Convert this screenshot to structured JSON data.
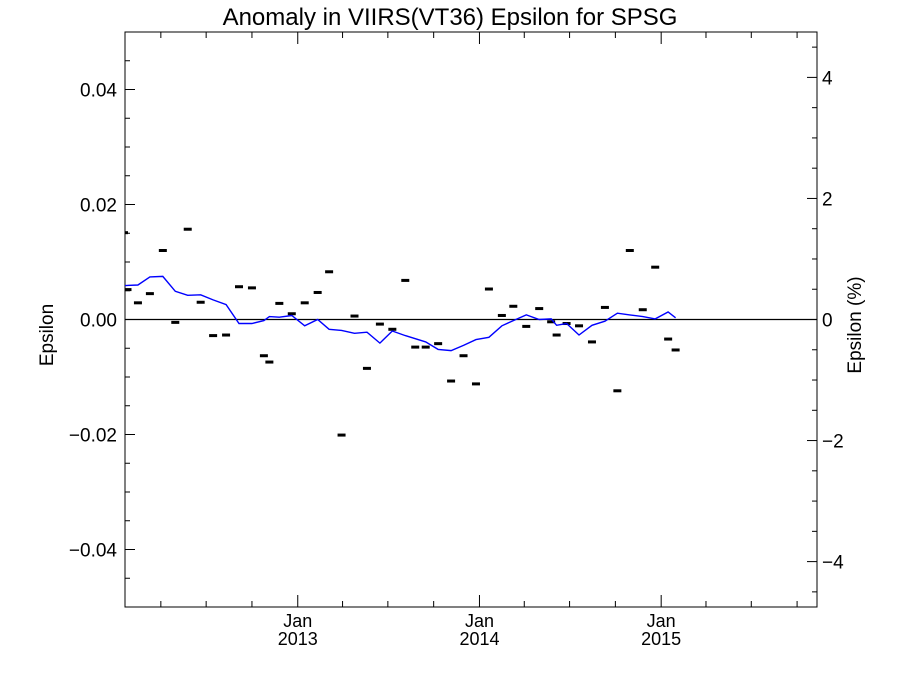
{
  "chart_data": {
    "type": "scatter",
    "title": "Anomaly in VIIRS(VT36) Epsilon for SPSG",
    "ylabel": "Epsilon",
    "ylabel_right": "Epsilon (%)",
    "xlabel": "",
    "xlim": [
      "2012-01-20",
      "2015-11-10"
    ],
    "ylim": [
      -0.05,
      0.05
    ],
    "ylim_right": [
      -4.75,
      4.75
    ],
    "yticks": [
      "0.04",
      "0.02",
      "0.00",
      "−0.02",
      "−0.04"
    ],
    "yticks_right": [
      "4",
      "2",
      "0",
      "−2",
      "−4"
    ],
    "xticks": [
      {
        "date": "2013-01-01",
        "month": "Jan",
        "year": "2013"
      },
      {
        "date": "2014-01-01",
        "month": "Jan",
        "year": "2014"
      },
      {
        "date": "2015-01-01",
        "month": "Jan",
        "year": "2015"
      }
    ],
    "grid": false,
    "zero_line": true,
    "series": [
      {
        "style": "markers",
        "color": "#000000",
        "points": [
          {
            "x": "2012-01-18",
            "y": 0.0151
          },
          {
            "x": "2012-01-25",
            "y": 0.0052
          },
          {
            "x": "2012-02-15",
            "y": 0.0029
          },
          {
            "x": "2012-03-10",
            "y": 0.0045
          },
          {
            "x": "2012-04-05",
            "y": 0.012
          },
          {
            "x": "2012-04-30",
            "y": -0.0005
          },
          {
            "x": "2012-05-25",
            "y": 0.0157
          },
          {
            "x": "2012-06-20",
            "y": 0.003
          },
          {
            "x": "2012-07-15",
            "y": -0.0028
          },
          {
            "x": "2012-08-10",
            "y": -0.0027
          },
          {
            "x": "2012-09-05",
            "y": 0.0057
          },
          {
            "x": "2012-10-01",
            "y": 0.0055
          },
          {
            "x": "2012-10-25",
            "y": -0.0063
          },
          {
            "x": "2012-11-05",
            "y": -0.0074
          },
          {
            "x": "2012-11-25",
            "y": 0.0028
          },
          {
            "x": "2012-12-20",
            "y": 0.001
          },
          {
            "x": "2013-01-15",
            "y": 0.0029
          },
          {
            "x": "2013-02-10",
            "y": 0.0047
          },
          {
            "x": "2013-03-05",
            "y": 0.0083
          },
          {
            "x": "2013-03-30",
            "y": -0.0201
          },
          {
            "x": "2013-04-25",
            "y": 0.0006
          },
          {
            "x": "2013-05-20",
            "y": -0.0085
          },
          {
            "x": "2013-06-15",
            "y": -0.0008
          },
          {
            "x": "2013-07-10",
            "y": -0.0017
          },
          {
            "x": "2013-08-05",
            "y": 0.0068
          },
          {
            "x": "2013-08-25",
            "y": -0.0048
          },
          {
            "x": "2013-09-15",
            "y": -0.0048
          },
          {
            "x": "2013-10-10",
            "y": -0.0042
          },
          {
            "x": "2013-11-05",
            "y": -0.0107
          },
          {
            "x": "2013-11-30",
            "y": -0.0063
          },
          {
            "x": "2013-12-25",
            "y": -0.0112
          },
          {
            "x": "2014-01-20",
            "y": 0.0053
          },
          {
            "x": "2014-02-15",
            "y": 0.0007
          },
          {
            "x": "2014-03-10",
            "y": 0.0023
          },
          {
            "x": "2014-04-05",
            "y": -0.0012
          },
          {
            "x": "2014-05-01",
            "y": 0.0019
          },
          {
            "x": "2014-05-25",
            "y": -0.0004
          },
          {
            "x": "2014-06-05",
            "y": -0.0027
          },
          {
            "x": "2014-06-25",
            "y": -0.0007
          },
          {
            "x": "2014-07-20",
            "y": -0.0011
          },
          {
            "x": "2014-08-15",
            "y": -0.0039
          },
          {
            "x": "2014-09-10",
            "y": 0.0021
          },
          {
            "x": "2014-10-05",
            "y": -0.0124
          },
          {
            "x": "2014-10-30",
            "y": 0.012
          },
          {
            "x": "2014-11-25",
            "y": 0.0017
          },
          {
            "x": "2014-12-20",
            "y": 0.0091
          },
          {
            "x": "2015-01-15",
            "y": -0.0034
          },
          {
            "x": "2015-01-30",
            "y": -0.0053
          }
        ]
      },
      {
        "style": "line",
        "color": "#0000ff",
        "points": [
          {
            "x": "2012-01-18",
            "y": 0.0059
          },
          {
            "x": "2012-02-15",
            "y": 0.006
          },
          {
            "x": "2012-03-10",
            "y": 0.0074
          },
          {
            "x": "2012-04-05",
            "y": 0.0075
          },
          {
            "x": "2012-04-30",
            "y": 0.0049
          },
          {
            "x": "2012-05-25",
            "y": 0.0042
          },
          {
            "x": "2012-06-20",
            "y": 0.0043
          },
          {
            "x": "2012-07-15",
            "y": 0.0034
          },
          {
            "x": "2012-08-10",
            "y": 0.0026
          },
          {
            "x": "2012-09-05",
            "y": -0.0007
          },
          {
            "x": "2012-10-01",
            "y": -0.0007
          },
          {
            "x": "2012-10-25",
            "y": -0.0002
          },
          {
            "x": "2012-11-05",
            "y": 0.0005
          },
          {
            "x": "2012-11-25",
            "y": 0.0004
          },
          {
            "x": "2012-12-20",
            "y": 0.0007
          },
          {
            "x": "2013-01-15",
            "y": -0.0011
          },
          {
            "x": "2013-02-10",
            "y": 0.0
          },
          {
            "x": "2013-03-05",
            "y": -0.0017
          },
          {
            "x": "2013-03-30",
            "y": -0.0019
          },
          {
            "x": "2013-04-25",
            "y": -0.0024
          },
          {
            "x": "2013-05-20",
            "y": -0.0022
          },
          {
            "x": "2013-06-15",
            "y": -0.0041
          },
          {
            "x": "2013-07-10",
            "y": -0.002
          },
          {
            "x": "2013-08-05",
            "y": -0.0028
          },
          {
            "x": "2013-09-15",
            "y": -0.0039
          },
          {
            "x": "2013-10-10",
            "y": -0.0052
          },
          {
            "x": "2013-11-05",
            "y": -0.0054
          },
          {
            "x": "2013-11-30",
            "y": -0.0045
          },
          {
            "x": "2013-12-25",
            "y": -0.0035
          },
          {
            "x": "2014-01-20",
            "y": -0.0031
          },
          {
            "x": "2014-02-15",
            "y": -0.0011
          },
          {
            "x": "2014-03-10",
            "y": -0.0002
          },
          {
            "x": "2014-04-05",
            "y": 0.0008
          },
          {
            "x": "2014-05-01",
            "y": 0.0
          },
          {
            "x": "2014-05-25",
            "y": 0.0001
          },
          {
            "x": "2014-06-05",
            "y": -0.001
          },
          {
            "x": "2014-06-25",
            "y": -0.0007
          },
          {
            "x": "2014-07-20",
            "y": -0.0027
          },
          {
            "x": "2014-08-15",
            "y": -0.001
          },
          {
            "x": "2014-09-10",
            "y": -0.0003
          },
          {
            "x": "2014-10-05",
            "y": 0.0011
          },
          {
            "x": "2014-10-30",
            "y": 0.0008
          },
          {
            "x": "2014-11-25",
            "y": 0.0005
          },
          {
            "x": "2014-12-20",
            "y": 0.0001
          },
          {
            "x": "2015-01-15",
            "y": 0.0013
          },
          {
            "x": "2015-01-30",
            "y": 0.0003
          }
        ]
      }
    ]
  }
}
